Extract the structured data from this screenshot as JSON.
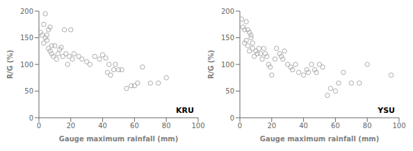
{
  "chart_data": [
    {
      "type": "scatter",
      "x": [
        1,
        2,
        3,
        4,
        5,
        6,
        7,
        8,
        3,
        4,
        5,
        6,
        7,
        8,
        9,
        10,
        11,
        12,
        13,
        14,
        15,
        16,
        17,
        18,
        19,
        20,
        21,
        22,
        25,
        27,
        30,
        32,
        35,
        38,
        40,
        42,
        43,
        44,
        45,
        47,
        48,
        50,
        52,
        55,
        58,
        60,
        62,
        65,
        70,
        75,
        80
      ],
      "values": [
        160,
        155,
        175,
        195,
        155,
        165,
        170,
        135,
        140,
        150,
        145,
        130,
        125,
        120,
        115,
        135,
        110,
        120,
        128,
        132,
        115,
        165,
        120,
        100,
        115,
        165,
        110,
        120,
        115,
        110,
        105,
        100,
        115,
        110,
        118,
        112,
        85,
        100,
        80,
        90,
        100,
        90,
        90,
        55,
        60,
        60,
        65,
        95,
        65,
        65,
        75
      ],
      "xlabel": "Gauge maximum rainfall (mm)",
      "ylabel": "R/G (%)",
      "xlim": [
        0,
        100
      ],
      "ylim": [
        0,
        200
      ],
      "xticks": [
        0,
        20,
        40,
        60,
        80,
        100
      ],
      "yticks": [
        0,
        50,
        100,
        150,
        200
      ],
      "color": "#aaaaaa",
      "marker": "circle",
      "grid": false,
      "annotations": [
        "KRU"
      ]
    },
    {
      "type": "scatter",
      "x": [
        1,
        2,
        3,
        4,
        5,
        6,
        7,
        8,
        3,
        4,
        5,
        6,
        7,
        8,
        9,
        10,
        11,
        12,
        13,
        14,
        15,
        16,
        17,
        18,
        19,
        20,
        22,
        23,
        25,
        26,
        27,
        28,
        30,
        32,
        33,
        35,
        37,
        40,
        42,
        43,
        45,
        47,
        48,
        50,
        52,
        55,
        57,
        60,
        62,
        65,
        70,
        75,
        80,
        95
      ],
      "values": [
        185,
        170,
        165,
        180,
        165,
        160,
        155,
        130,
        140,
        145,
        135,
        125,
        150,
        140,
        115,
        125,
        120,
        130,
        120,
        110,
        130,
        120,
        115,
        100,
        95,
        80,
        110,
        130,
        120,
        115,
        110,
        125,
        100,
        95,
        90,
        100,
        85,
        80,
        90,
        85,
        100,
        90,
        85,
        100,
        95,
        42,
        55,
        50,
        65,
        85,
        65,
        65,
        100,
        80
      ],
      "xlabel": "Gauge maximum rainfall (mm)",
      "ylabel": "R/G (%)",
      "xlim": [
        0,
        100
      ],
      "ylim": [
        0,
        200
      ],
      "xticks": [
        0,
        20,
        40,
        60,
        80,
        100
      ],
      "yticks": [
        0,
        50,
        100,
        150,
        200
      ],
      "color": "#aaaaaa",
      "marker": "circle",
      "grid": false,
      "annotations": [
        "YSU"
      ]
    }
  ]
}
